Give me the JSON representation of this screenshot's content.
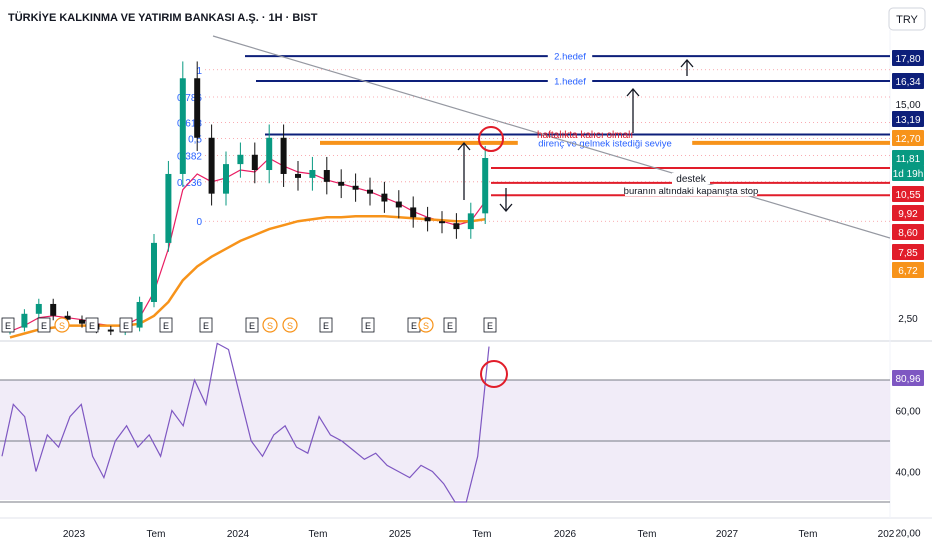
{
  "title": "TÜRKİYE KALKINMA VE YATIRIM BANKASI A.Ş. · 1H · BIST",
  "currency_button": "TRY",
  "colors": {
    "up": "#089981",
    "down": "#111111",
    "ema_fast": "#e91e63",
    "ema_slow": "#f7931a",
    "fib": "#2962ff",
    "target": "#0d1f7a",
    "support": "#e11d2a",
    "rsi": "#7e57c2",
    "rsi_band": "#ede7f6"
  },
  "chart_data": [
    {
      "type": "candlestick",
      "title": "TÜRKİYE KALKINMA VE YATIRIM BANKASI A.Ş. · 1H · BIST",
      "x_axis_labels": [
        "2023",
        "Tem",
        "2024",
        "Tem",
        "2025",
        "Tem",
        "2026",
        "Tem",
        "2027",
        "Tem",
        "202"
      ],
      "y_ticks": [
        "15,00",
        "2,50"
      ],
      "price_labels": [
        {
          "text": "17,80",
          "value": 17.8,
          "color": "#0d1f7a"
        },
        {
          "text": "16,34",
          "value": 16.34,
          "color": "#0d1f7a"
        },
        {
          "text": "13,19",
          "value": 13.19,
          "color": "#0d1f7a"
        },
        {
          "text": "12,70",
          "value": 12.7,
          "color": "#f7931a"
        },
        {
          "text": "11,81",
          "value": 11.81,
          "color": "#089981"
        },
        {
          "text": "1d 19h",
          "value": 11.3,
          "color": "#089981"
        },
        {
          "text": "10,55",
          "value": 10.55,
          "color": "#e11d2a"
        },
        {
          "text": "9,92",
          "value": 9.92,
          "color": "#e11d2a"
        },
        {
          "text": "8,60",
          "value": 8.6,
          "color": "#e11d2a"
        },
        {
          "text": "7,85",
          "value": 7.85,
          "color": "#e11d2a"
        },
        {
          "text": "6,72",
          "value": 6.72,
          "color": "#f7931a"
        }
      ],
      "fib_levels": [
        {
          "label": "1",
          "value": 17.0
        },
        {
          "label": "0,786",
          "value": 15.4
        },
        {
          "label": "0,618",
          "value": 13.9
        },
        {
          "label": "0,5",
          "value": 12.95
        },
        {
          "label": "0,382",
          "value": 11.95
        },
        {
          "label": "0,236",
          "value": 10.6
        },
        {
          "label": "0",
          "value": 8.6
        }
      ],
      "horizontal_lines": [
        {
          "label": "2.hedef",
          "value": 17.8,
          "color": "#0d1f7a"
        },
        {
          "label": "1.hedef",
          "value": 16.34,
          "color": "#0d1f7a"
        },
        {
          "label": "",
          "value": 13.19,
          "color": "#0d1f7a"
        },
        {
          "label": "direnç ve gelmek istediği seviye",
          "value": 12.7,
          "color": "#f7931a"
        },
        {
          "label": "",
          "value": 11.3,
          "color": "#e11d2a"
        },
        {
          "label": "",
          "value": 10.55,
          "color": "#e11d2a"
        },
        {
          "label": "",
          "value": 9.92,
          "color": "#e11d2a"
        }
      ],
      "annotations": [
        "haftalıkta kalıcı olmalı",
        "destek",
        "buranın altındaki kapanışta stop"
      ],
      "event_markers": [
        "E",
        "E",
        "S",
        "E",
        "E",
        "E",
        "E",
        "E",
        "S",
        "S",
        "E",
        "E",
        "E",
        "S",
        "E",
        "E"
      ],
      "series": [
        {
          "name": "",
          "type": "ohlc",
          "x": [
            "2022-11",
            "2022-12",
            "2023-01",
            "2023-02",
            "2023-03",
            "2023-04",
            "2023-05",
            "2023-06",
            "2023-07",
            "2023-08",
            "2023-09",
            "2023-10",
            "2023-11",
            "2023-12",
            "2024-01",
            "2024-02",
            "2024-03",
            "2024-04",
            "2024-05",
            "2024-06",
            "2024-07",
            "2024-08",
            "2024-09",
            "2024-10",
            "2024-11",
            "2024-12",
            "2025-01",
            "2025-02",
            "2025-03",
            "2025-04",
            "2025-05",
            "2025-06",
            "2025-07",
            "2025-08"
          ],
          "close": [
            3.2,
            3.9,
            4.4,
            3.8,
            3.6,
            3.4,
            3.1,
            3.0,
            3.2,
            4.5,
            7.5,
            11.0,
            16.5,
            13.0,
            10.0,
            11.5,
            12.0,
            11.2,
            13.0,
            11.0,
            10.8,
            11.2,
            10.6,
            10.4,
            10.2,
            10.0,
            9.6,
            9.3,
            8.8,
            8.6,
            8.5,
            8.2,
            9.0,
            11.81
          ]
        },
        {
          "name": "",
          "type": "moving-average",
          "color": "#e91e63",
          "values": [
            3.0,
            3.3,
            3.7,
            3.8,
            3.7,
            3.6,
            3.4,
            3.3,
            3.3,
            3.7,
            5.0,
            7.2,
            10.2,
            11.0,
            10.6,
            10.8,
            11.2,
            11.1,
            11.8,
            11.4,
            11.1,
            11.0,
            10.7,
            10.5,
            10.3,
            10.1,
            9.8,
            9.5,
            9.1,
            8.8,
            8.6,
            8.4,
            8.6,
            9.6
          ]
        },
        {
          "name": "",
          "type": "moving-average",
          "color": "#f7931a",
          "values": [
            2.7,
            2.9,
            3.1,
            3.2,
            3.3,
            3.3,
            3.3,
            3.3,
            3.3,
            3.4,
            3.8,
            4.5,
            5.6,
            6.3,
            6.8,
            7.2,
            7.6,
            7.9,
            8.2,
            8.4,
            8.6,
            8.7,
            8.8,
            8.8,
            8.85,
            8.85,
            8.85,
            8.8,
            8.75,
            8.7,
            8.65,
            8.6,
            8.6,
            8.7
          ]
        }
      ]
    },
    {
      "type": "line",
      "title": "",
      "y_ticks": [
        "60,00",
        "40,00",
        "20,00"
      ],
      "levels": [
        70,
        50,
        30
      ],
      "current_value_label": "80,96",
      "series": [
        {
          "name": "",
          "values": [
            45,
            62,
            58,
            40,
            52,
            48,
            58,
            62,
            45,
            38,
            50,
            55,
            48,
            52,
            45,
            60,
            55,
            70,
            62,
            82,
            80,
            65,
            50,
            45,
            52,
            55,
            48,
            46,
            58,
            52,
            50,
            47,
            44,
            46,
            42,
            40,
            38,
            42,
            40,
            36,
            30,
            30,
            45,
            80.96
          ]
        }
      ]
    }
  ]
}
